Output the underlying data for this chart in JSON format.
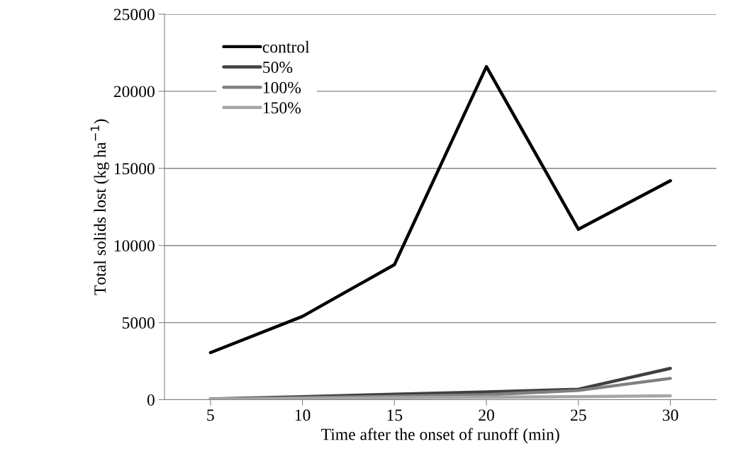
{
  "chart_data": {
    "type": "line",
    "xlabel": "Time after the onset of runoff (min)",
    "ylabel": "Total solids lost (kg ha$^{−1}$)",
    "categories": [
      "5",
      "10",
      "15",
      "20",
      "25",
      "30"
    ],
    "series": [
      {
        "name": "control",
        "color": "#000000",
        "values": [
          3050,
          5400,
          8760,
          21600,
          11050,
          14200
        ]
      },
      {
        "name": "50%",
        "color": "#404040",
        "values": [
          50,
          200,
          350,
          500,
          680,
          2030
        ]
      },
      {
        "name": "100%",
        "color": "#808080",
        "values": [
          30,
          120,
          220,
          320,
          600,
          1380
        ]
      },
      {
        "name": "150%",
        "color": "#a6a6a6",
        "values": [
          30,
          80,
          120,
          160,
          200,
          250
        ]
      }
    ],
    "ylim": [
      0,
      25000
    ],
    "yticks": [
      0,
      5000,
      10000,
      15000,
      20000,
      25000
    ],
    "grid": "y",
    "legend": "top left",
    "marker": "none",
    "line_style": "solid"
  }
}
